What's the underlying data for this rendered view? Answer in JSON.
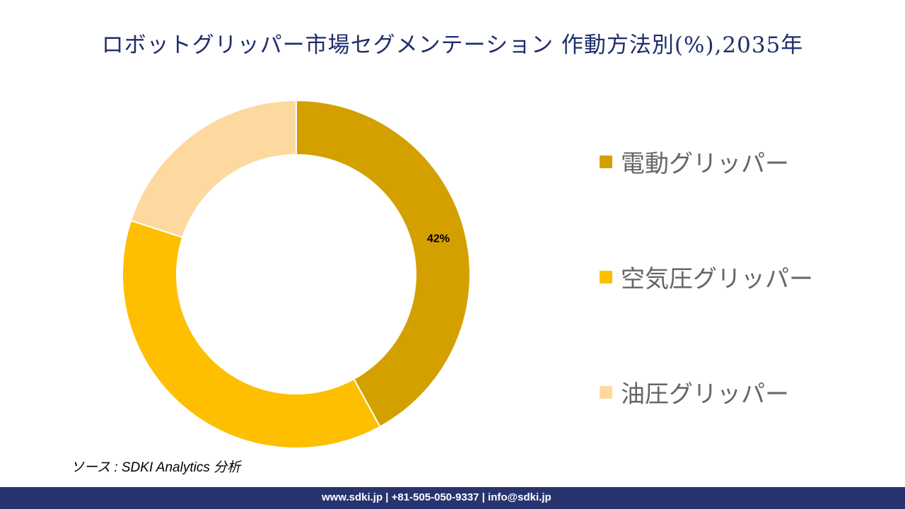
{
  "title": "ロボットグリッパー市場セグメンテーション 作動方法別(%),2035年",
  "chart_data": {
    "type": "pie",
    "donut": true,
    "title": "ロボットグリッパー市場セグメンテーション 作動方法別(%),2035年",
    "legend_position": "right",
    "series": [
      {
        "name": "電動グリッパー",
        "value": 42,
        "label": "42%",
        "color": "#d4a000"
      },
      {
        "name": "空気圧グリッパー",
        "value": 38,
        "label": "",
        "color": "#fdbf00"
      },
      {
        "name": "油圧グリッパー",
        "value": 20,
        "label": "",
        "color": "#fdd9a0"
      }
    ]
  },
  "source": "ソース : SDKI Analytics 分析",
  "footer": "www.sdki.jp | +81-505-050-9337 | info@sdki.jp"
}
